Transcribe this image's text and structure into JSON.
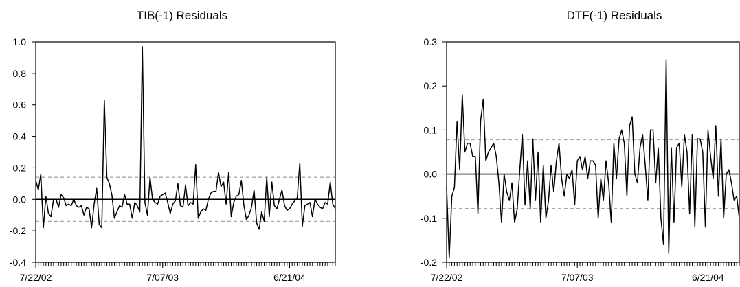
{
  "chart_data": [
    {
      "type": "line",
      "title": "TIB(-1) Residuals",
      "xlabel": "",
      "ylabel": "",
      "ylim": [
        -0.4,
        1.0
      ],
      "yticks": [
        1.0,
        0.8,
        0.6,
        0.4,
        0.2,
        0.0,
        -0.2,
        -0.4
      ],
      "ytick_labels": [
        "1.0",
        "0.8",
        "0.6",
        "0.4",
        "0.2",
        "0.0",
        "-0.2",
        "-0.4"
      ],
      "x_tick_labels": [
        {
          "label": "7/22/02",
          "index": 0
        },
        {
          "label": "7/07/03",
          "index": 50
        },
        {
          "label": "6/21/04",
          "index": 100
        }
      ],
      "zero_line": 0,
      "bands": [
        0.14,
        -0.14
      ],
      "values": [
        0.12,
        0.06,
        0.16,
        -0.18,
        0.02,
        -0.09,
        -0.11,
        0.0,
        0.0,
        -0.05,
        0.03,
        0.01,
        -0.04,
        -0.03,
        -0.04,
        0.0,
        -0.04,
        -0.05,
        -0.04,
        -0.1,
        -0.05,
        -0.06,
        -0.18,
        -0.03,
        0.07,
        -0.16,
        -0.18,
        0.63,
        0.14,
        0.1,
        0.03,
        -0.12,
        -0.08,
        -0.04,
        -0.05,
        0.03,
        -0.03,
        -0.03,
        -0.12,
        -0.02,
        -0.04,
        -0.08,
        0.97,
        -0.02,
        -0.1,
        0.14,
        0.0,
        -0.02,
        -0.03,
        0.02,
        0.03,
        0.04,
        -0.02,
        -0.09,
        -0.03,
        -0.01,
        0.1,
        -0.04,
        -0.05,
        0.09,
        -0.04,
        -0.02,
        -0.03,
        0.22,
        -0.12,
        -0.08,
        -0.06,
        -0.07,
        0.0,
        0.04,
        0.05,
        0.05,
        0.17,
        0.08,
        0.11,
        -0.03,
        0.17,
        -0.11,
        -0.02,
        0.02,
        0.03,
        0.12,
        -0.04,
        -0.13,
        -0.1,
        -0.05,
        0.06,
        -0.15,
        -0.19,
        -0.08,
        -0.14,
        0.14,
        -0.11,
        0.11,
        -0.04,
        -0.06,
        0.0,
        0.06,
        -0.04,
        -0.07,
        -0.06,
        -0.03,
        -0.01,
        0.01,
        0.23,
        -0.17,
        -0.04,
        -0.03,
        -0.02,
        -0.11,
        0.0,
        -0.03,
        -0.05,
        -0.06,
        -0.02,
        -0.03,
        0.11,
        -0.03,
        -0.06
      ]
    },
    {
      "type": "line",
      "title": "DTF(-1) Residuals",
      "xlabel": "",
      "ylabel": "",
      "ylim": [
        -0.2,
        0.3
      ],
      "yticks": [
        0.3,
        0.2,
        0.1,
        0.0,
        -0.1,
        -0.2
      ],
      "ytick_labels": [
        "0.3",
        "0.2",
        "0.1",
        "0.0",
        "-0.1",
        "-0.2"
      ],
      "x_tick_labels": [
        {
          "label": "7/22/02",
          "index": 0
        },
        {
          "label": "7/07/03",
          "index": 50
        },
        {
          "label": "6/21/04",
          "index": 100
        }
      ],
      "zero_line": 0,
      "bands": [
        0.078,
        -0.078
      ],
      "values": [
        -0.03,
        -0.19,
        -0.05,
        -0.03,
        0.12,
        0.01,
        0.18,
        0.05,
        0.07,
        0.07,
        0.04,
        0.04,
        -0.09,
        0.12,
        0.17,
        0.03,
        0.05,
        0.06,
        0.07,
        0.04,
        -0.02,
        -0.11,
        0.0,
        -0.04,
        -0.06,
        -0.02,
        -0.11,
        -0.08,
        0.01,
        0.09,
        -0.07,
        0.03,
        -0.08,
        0.08,
        -0.06,
        0.05,
        -0.11,
        0.02,
        -0.1,
        -0.06,
        0.02,
        -0.04,
        0.03,
        0.07,
        -0.01,
        -0.05,
        0.0,
        -0.01,
        0.01,
        -0.07,
        0.03,
        0.04,
        0.01,
        0.04,
        -0.01,
        0.03,
        0.03,
        0.02,
        -0.1,
        -0.01,
        -0.06,
        0.03,
        -0.02,
        -0.11,
        0.07,
        -0.01,
        0.08,
        0.1,
        0.07,
        -0.05,
        0.11,
        0.13,
        0.0,
        -0.02,
        0.06,
        0.09,
        0.02,
        -0.06,
        0.1,
        0.1,
        -0.02,
        0.06,
        -0.1,
        -0.16,
        0.26,
        -0.18,
        0.06,
        -0.11,
        0.06,
        0.07,
        -0.03,
        0.09,
        0.05,
        -0.09,
        0.09,
        -0.12,
        0.08,
        0.08,
        0.05,
        -0.12,
        0.1,
        0.04,
        -0.01,
        0.11,
        -0.05,
        0.08,
        -0.1,
        0.0,
        0.01,
        -0.02,
        -0.06,
        -0.05,
        -0.1
      ]
    }
  ]
}
